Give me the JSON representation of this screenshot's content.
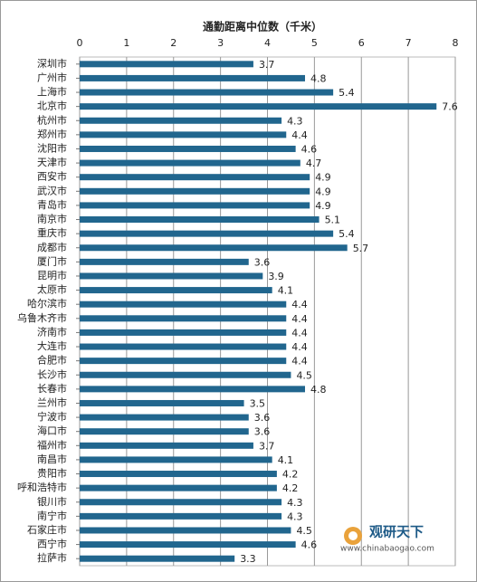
{
  "chart_data": {
    "type": "barh",
    "title": "通勤距离中位数（千米）",
    "categories": [
      "深圳市",
      "广州市",
      "上海市",
      "北京市",
      "杭州市",
      "郑州市",
      "沈阳市",
      "天津市",
      "西安市",
      "武汉市",
      "青岛市",
      "南京市",
      "重庆市",
      "成都市",
      "厦门市",
      "昆明市",
      "太原市",
      "哈尔滨市",
      "乌鲁木齐市",
      "济南市",
      "大连市",
      "合肥市",
      "长沙市",
      "长春市",
      "兰州市",
      "宁波市",
      "海口市",
      "福州市",
      "南昌市",
      "贵阳市",
      "呼和浩特市",
      "银川市",
      "南宁市",
      "石家庄市",
      "西宁市",
      "拉萨市"
    ],
    "values": [
      3.7,
      4.8,
      5.4,
      7.6,
      4.3,
      4.4,
      4.6,
      4.7,
      4.9,
      4.9,
      4.9,
      5.1,
      5.4,
      5.7,
      3.6,
      3.9,
      4.1,
      4.4,
      4.4,
      4.4,
      4.4,
      4.4,
      4.5,
      4.8,
      3.5,
      3.6,
      3.6,
      3.7,
      4.1,
      4.2,
      4.2,
      4.3,
      4.3,
      4.5,
      4.6,
      3.3
    ],
    "color": "#21668e",
    "xlim": [
      0,
      8
    ],
    "xticks": [
      0,
      1,
      2,
      3,
      4,
      5,
      6,
      7,
      8
    ],
    "grid": true,
    "watermark": {
      "brand": "观研天下",
      "url": "www.chinabaogao.com"
    }
  }
}
